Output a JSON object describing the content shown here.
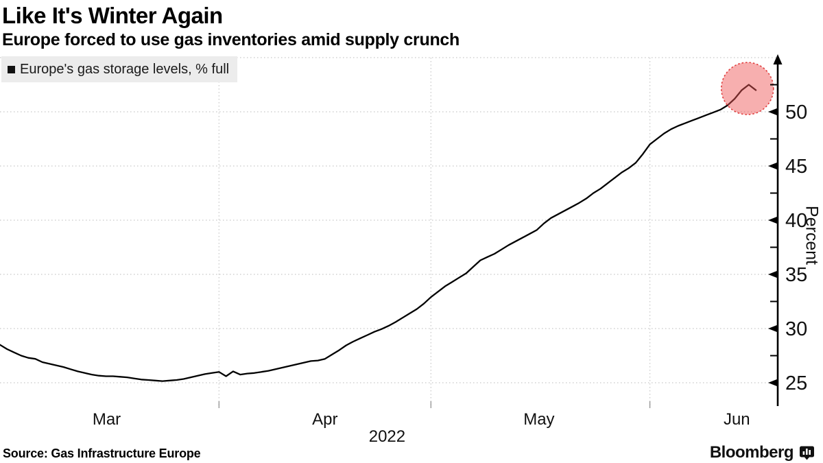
{
  "header": {
    "title": "Like It's Winter Again",
    "subtitle": "Europe forced to use gas inventories amid supply crunch"
  },
  "legend": {
    "label": "Europe's gas storage levels, % full"
  },
  "footer": {
    "source": "Source: Gas Infrastructure Europe",
    "brand": "Bloomberg"
  },
  "colors": {
    "line": "#000000",
    "grid": "#c6c6c6",
    "axis": "#000000",
    "legend_bg": "#ececec",
    "highlight_fill": "rgba(238,88,88,0.48)",
    "highlight_stroke": "#e03c3c"
  },
  "chart_data": {
    "type": "line",
    "title": "Like It's Winter Again",
    "subtitle": "Europe forced to use gas inventories amid supply crunch",
    "legend_position": "top-left",
    "grid": true,
    "y_axis": {
      "label": "Percent",
      "side": "right",
      "ylim": [
        22.9,
        55
      ],
      "major_ticks": [
        25,
        30,
        35,
        40,
        45,
        50
      ],
      "minor_ticks": [
        27.5,
        32.5,
        37.5,
        42.5,
        47.5,
        52.5
      ],
      "grid_values": [
        25,
        30,
        35,
        40,
        45,
        50,
        55
      ]
    },
    "x_axis": {
      "unit": "days since 2022-03-01",
      "month_boundary_days": [
        31,
        61,
        92
      ],
      "month_labels": [
        {
          "label": "Mar",
          "day": 15.1
        },
        {
          "label": "Apr",
          "day": 46.0
        },
        {
          "label": "May",
          "day": 76.3
        },
        {
          "label": "Jun",
          "day": 104.3
        }
      ],
      "year_label": "2022",
      "year_label_day": 54.8
    },
    "highlight": {
      "shape": "dashed-circle",
      "center_day": 105.8,
      "center_value": 52.15,
      "radius_px": 38
    },
    "series": [
      {
        "name": "Europe's gas storage levels, % full",
        "points": [
          [
            0,
            28.5
          ],
          [
            1,
            28.1
          ],
          [
            2,
            27.8
          ],
          [
            3,
            27.5
          ],
          [
            4,
            27.3
          ],
          [
            5,
            27.2
          ],
          [
            6,
            26.9
          ],
          [
            7,
            26.75
          ],
          [
            8,
            26.6
          ],
          [
            9,
            26.45
          ],
          [
            10,
            26.25
          ],
          [
            11,
            26.05
          ],
          [
            12,
            25.9
          ],
          [
            13,
            25.75
          ],
          [
            14,
            25.65
          ],
          [
            15,
            25.6
          ],
          [
            16,
            25.6
          ],
          [
            17,
            25.55
          ],
          [
            18,
            25.5
          ],
          [
            19,
            25.4
          ],
          [
            20,
            25.3
          ],
          [
            21,
            25.25
          ],
          [
            22,
            25.2
          ],
          [
            23,
            25.15
          ],
          [
            24,
            25.2
          ],
          [
            25,
            25.25
          ],
          [
            26,
            25.35
          ],
          [
            27,
            25.5
          ],
          [
            28,
            25.65
          ],
          [
            29,
            25.8
          ],
          [
            30,
            25.9
          ],
          [
            31,
            26.0
          ],
          [
            32,
            25.6
          ],
          [
            33,
            26.05
          ],
          [
            34,
            25.75
          ],
          [
            35,
            25.85
          ],
          [
            36,
            25.9
          ],
          [
            37,
            26.0
          ],
          [
            38,
            26.1
          ],
          [
            39,
            26.25
          ],
          [
            40,
            26.4
          ],
          [
            41,
            26.55
          ],
          [
            42,
            26.7
          ],
          [
            43,
            26.85
          ],
          [
            44,
            27.0
          ],
          [
            45,
            27.05
          ],
          [
            46,
            27.2
          ],
          [
            47,
            27.6
          ],
          [
            48,
            28.0
          ],
          [
            49,
            28.45
          ],
          [
            50,
            28.8
          ],
          [
            51,
            29.1
          ],
          [
            52,
            29.4
          ],
          [
            53,
            29.7
          ],
          [
            54,
            29.95
          ],
          [
            55,
            30.25
          ],
          [
            56,
            30.6
          ],
          [
            57,
            31.0
          ],
          [
            58,
            31.4
          ],
          [
            59,
            31.8
          ],
          [
            60,
            32.3
          ],
          [
            61,
            32.9
          ],
          [
            62,
            33.4
          ],
          [
            63,
            33.9
          ],
          [
            64,
            34.3
          ],
          [
            65,
            34.7
          ],
          [
            66,
            35.1
          ],
          [
            67,
            35.7
          ],
          [
            68,
            36.3
          ],
          [
            69,
            36.6
          ],
          [
            70,
            36.9
          ],
          [
            71,
            37.3
          ],
          [
            72,
            37.7
          ],
          [
            73,
            38.05
          ],
          [
            74,
            38.4
          ],
          [
            75,
            38.75
          ],
          [
            76,
            39.1
          ],
          [
            77,
            39.7
          ],
          [
            78,
            40.2
          ],
          [
            79,
            40.55
          ],
          [
            80,
            40.9
          ],
          [
            81,
            41.25
          ],
          [
            82,
            41.6
          ],
          [
            83,
            42.0
          ],
          [
            84,
            42.5
          ],
          [
            85,
            42.9
          ],
          [
            86,
            43.4
          ],
          [
            87,
            43.9
          ],
          [
            88,
            44.4
          ],
          [
            89,
            44.8
          ],
          [
            90,
            45.3
          ],
          [
            91,
            46.1
          ],
          [
            92,
            47.0
          ],
          [
            93,
            47.5
          ],
          [
            94,
            48.0
          ],
          [
            95,
            48.4
          ],
          [
            96,
            48.7
          ],
          [
            97,
            48.95
          ],
          [
            98,
            49.2
          ],
          [
            99,
            49.45
          ],
          [
            100,
            49.7
          ],
          [
            101,
            49.95
          ],
          [
            102,
            50.2
          ],
          [
            103,
            50.6
          ],
          [
            104,
            51.2
          ],
          [
            105,
            52.0
          ],
          [
            106,
            52.5
          ],
          [
            107,
            52.0
          ]
        ]
      }
    ]
  }
}
